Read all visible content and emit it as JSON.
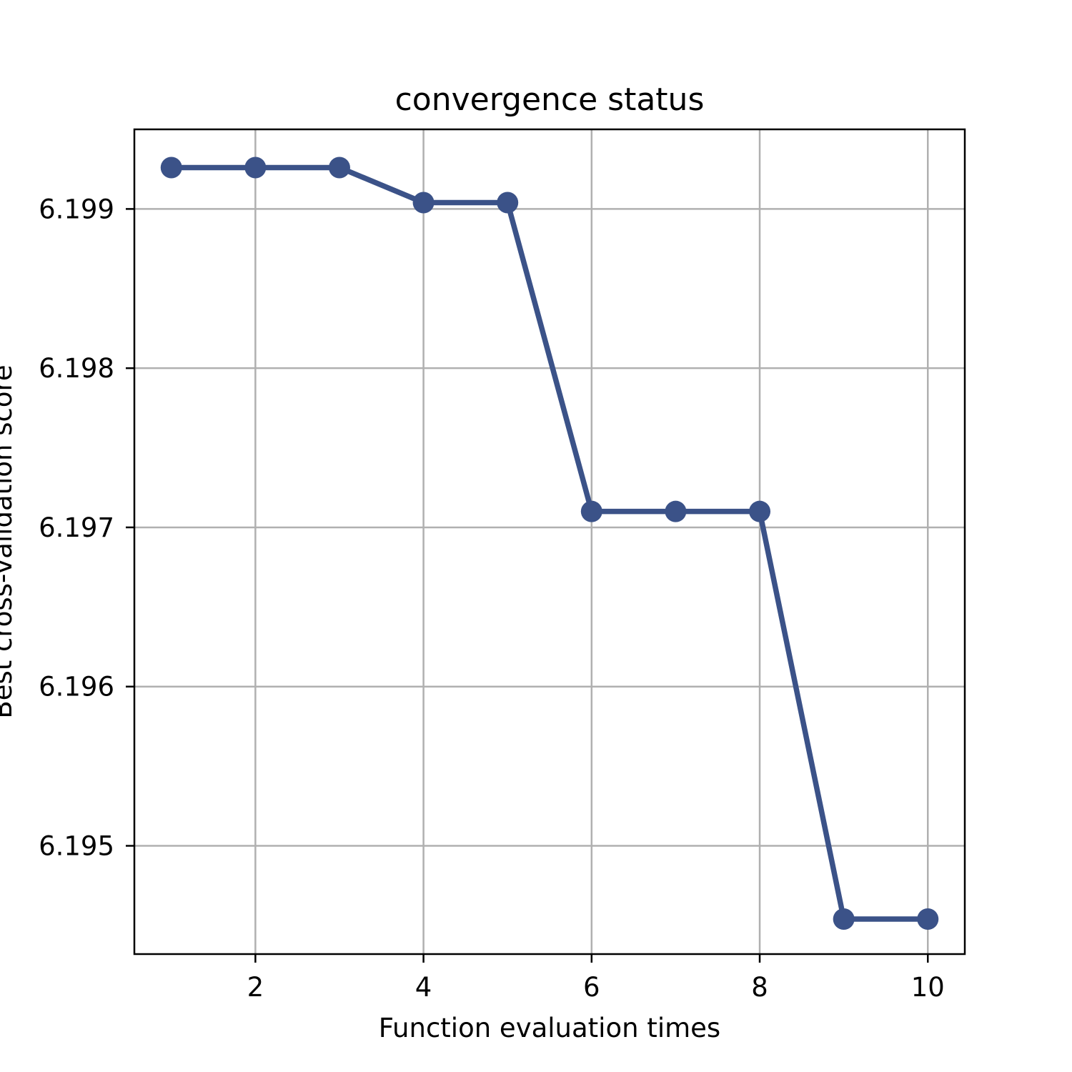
{
  "chart_data": {
    "type": "line",
    "title": "convergence status",
    "xlabel": "Function evaluation times",
    "ylabel": "Best cross-validation score",
    "x": [
      1,
      2,
      3,
      4,
      5,
      6,
      7,
      8,
      9,
      10
    ],
    "series": [
      {
        "values": [
          6.19926,
          6.19926,
          6.19926,
          6.19904,
          6.19904,
          6.1971,
          6.1971,
          6.1971,
          6.19454,
          6.19454
        ],
        "color": "#3b5288",
        "marker": "circle"
      }
    ],
    "xlim": [
      0.56,
      10.44
    ],
    "ylim": [
      6.19432,
      6.1995
    ],
    "xticks": [
      2,
      4,
      6,
      8,
      10
    ],
    "xtick_labels": [
      "2",
      "4",
      "6",
      "8",
      "10"
    ],
    "yticks": [
      6.195,
      6.196,
      6.197,
      6.198,
      6.199
    ],
    "ytick_labels": [
      "6.195",
      "6.196",
      "6.197",
      "6.198",
      "6.199"
    ],
    "grid": true,
    "grid_color": "#b0b0b0"
  }
}
